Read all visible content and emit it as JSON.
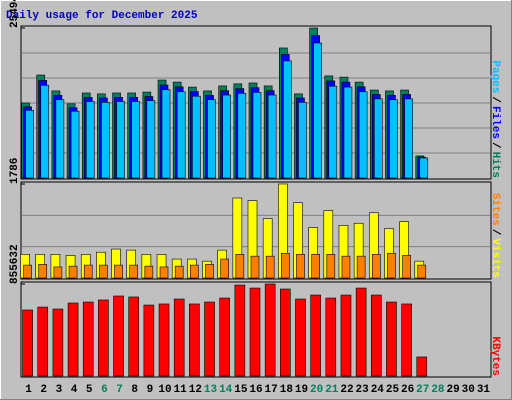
{
  "chart_data": [
    {
      "type": "bar",
      "title": "Daily usage for December 2025",
      "title_color": "#0000c0",
      "ylim": [
        0,
        25494
      ],
      "yticks": [
        25494
      ],
      "legend_separator": "/",
      "series": [
        {
          "name": "Hits",
          "color": "#00805c",
          "values": [
            12750,
            17500,
            14800,
            12600,
            14450,
            14300,
            14450,
            14450,
            14600,
            16650,
            16300,
            15450,
            14800,
            15650,
            16000,
            16150,
            15650,
            22100,
            14300,
            25494,
            17350,
            17150,
            16300,
            14950,
            14800,
            14950,
            3750,
            null,
            null,
            null,
            null
          ]
        },
        {
          "name": "Files",
          "color": "#0000ff",
          "values": [
            12100,
            16600,
            14050,
            11950,
            13700,
            13600,
            13700,
            13700,
            13850,
            15800,
            15500,
            14700,
            14050,
            14850,
            15200,
            15350,
            14850,
            21000,
            13600,
            24200,
            16500,
            16300,
            15500,
            14200,
            14050,
            14200,
            3550,
            null,
            null,
            null,
            null
          ]
        },
        {
          "name": "Pages",
          "color": "#00c0ff",
          "values": [
            11500,
            15750,
            13300,
            11350,
            13000,
            12850,
            13000,
            13000,
            13150,
            15000,
            14650,
            13900,
            13300,
            14100,
            14400,
            14550,
            14100,
            19900,
            12850,
            22950,
            15600,
            15450,
            14650,
            13450,
            13300,
            13450,
            3400,
            null,
            null,
            null,
            null
          ]
        }
      ]
    },
    {
      "type": "bar",
      "ylim": [
        0,
        1786
      ],
      "yticks": [
        1786
      ],
      "legend_separator": "/",
      "series": [
        {
          "name": "Visits",
          "color": "#ffff00",
          "values": [
            450,
            450,
            450,
            430,
            450,
            490,
            550,
            530,
            450,
            450,
            360,
            360,
            320,
            530,
            1520,
            1470,
            1130,
            1786,
            1430,
            960,
            1280,
            1000,
            1040,
            1240,
            940,
            1070,
            320,
            null,
            null,
            null,
            null
          ]
        },
        {
          "name": "Sites",
          "color": "#ff8000",
          "values": [
            245,
            260,
            210,
            225,
            245,
            245,
            245,
            245,
            225,
            210,
            225,
            245,
            260,
            360,
            450,
            415,
            415,
            470,
            450,
            450,
            450,
            415,
            415,
            450,
            470,
            430,
            245,
            null,
            null,
            null,
            null
          ]
        }
      ]
    },
    {
      "type": "bar",
      "ylim": [
        0,
        855632
      ],
      "yticks": [
        855632
      ],
      "series": [
        {
          "name": "KBytes",
          "color": "#ff0000",
          "values": [
            614000,
            641000,
            623000,
            679000,
            688000,
            707000,
            744000,
            735000,
            660000,
            670000,
            716000,
            670000,
            688000,
            725000,
            846000,
            818000,
            855632,
            809000,
            716000,
            753000,
            725000,
            753000,
            818000,
            753000,
            688000,
            670000,
            177000,
            null,
            null,
            null,
            null
          ]
        }
      ],
      "categories": [
        "1",
        "2",
        "3",
        "4",
        "5",
        "6",
        "7",
        "8",
        "9",
        "10",
        "11",
        "12",
        "13",
        "14",
        "15",
        "16",
        "17",
        "18",
        "19",
        "20",
        "21",
        "22",
        "23",
        "24",
        "25",
        "26",
        "27",
        "28",
        "29",
        "30",
        "31"
      ],
      "category_colors": [
        "#000000",
        "#000000",
        "#000000",
        "#000000",
        "#000000",
        "#00805c",
        "#00805c",
        "#000000",
        "#000000",
        "#000000",
        "#000000",
        "#000000",
        "#00805c",
        "#00805c",
        "#000000",
        "#000000",
        "#000000",
        "#000000",
        "#000000",
        "#00805c",
        "#00805c",
        "#000000",
        "#000000",
        "#000000",
        "#000000",
        "#000000",
        "#00805c",
        "#00805c",
        "#000000",
        "#000000",
        "#000000"
      ]
    }
  ]
}
